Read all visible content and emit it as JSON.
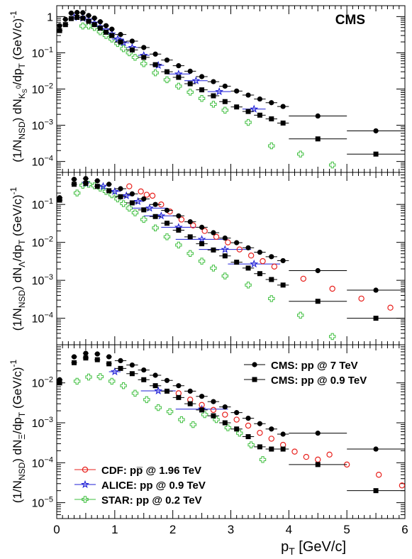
{
  "chart_data": {
    "type": "scatter",
    "xaxis": {
      "label": "p_T [GeV/c]",
      "range": [
        0,
        6
      ],
      "ticks": [
        "0",
        "1",
        "2",
        "3",
        "4",
        "5",
        "6"
      ]
    },
    "colors": {
      "CMS": "#000000",
      "CDF": "#e8201c",
      "ALICE": "#1f1fd6",
      "STAR": "#3fbf3f"
    },
    "experiment_label": "CMS",
    "legend_top": [
      {
        "label": "CMS: pp @ 7 TeV",
        "marker": "circle",
        "series": "cms7"
      },
      {
        "label": "CMS: pp @ 0.9 TeV",
        "marker": "square",
        "series": "cms09"
      }
    ],
    "legend_bottom": [
      {
        "label": "CDF: pp̅ @ 1.96 TeV",
        "marker": "open-circle",
        "series": "cdf"
      },
      {
        "label": "ALICE: pp @ 0.9 TeV",
        "marker": "star",
        "series": "alice"
      },
      {
        "label": "STAR: pp @ 0.2 TeV",
        "marker": "open-cross",
        "series": "star"
      }
    ],
    "panels": [
      {
        "id": "K0S",
        "ylabel": "(1/N_NSD) dN_{K0S}/dp_T (GeV/c)^-1",
        "yscale": "log",
        "ylim": [
          5e-05,
          2
        ],
        "ytick_values": [
          1,
          0.1,
          0.01,
          0.001,
          0.0001
        ],
        "ytick_labels": [
          "1",
          "10^-1",
          "10^-2",
          "10^-3",
          "10^-4"
        ],
        "series": {
          "cms7": {
            "x": [
              0.05,
              0.15,
              0.25,
              0.35,
              0.45,
              0.55,
              0.65,
              0.75,
              0.85,
              0.95,
              1.1,
              1.3,
              1.5,
              1.7,
              1.9,
              2.1,
              2.3,
              2.5,
              2.7,
              2.9,
              3.1,
              3.3,
              3.5,
              3.7,
              3.9,
              4.5,
              5.5
            ],
            "y": [
              0.56,
              0.84,
              1.25,
              1.3,
              1.28,
              1.07,
              0.91,
              0.72,
              0.56,
              0.45,
              0.32,
              0.21,
              0.14,
              0.092,
              0.063,
              0.044,
              0.031,
              0.022,
              0.016,
              0.012,
              0.0088,
              0.0068,
              0.0053,
              0.0042,
              0.0033,
              0.0018,
              0.0007
            ]
          },
          "cms09": {
            "x": [
              0.05,
              0.15,
              0.25,
              0.35,
              0.45,
              0.55,
              0.65,
              0.75,
              0.85,
              0.95,
              1.1,
              1.3,
              1.5,
              1.7,
              1.9,
              2.1,
              2.3,
              2.5,
              2.7,
              2.9,
              3.1,
              3.3,
              3.5,
              3.7,
              3.9,
              4.5,
              5.5
            ],
            "y": [
              0.41,
              0.6,
              0.88,
              0.95,
              0.9,
              0.74,
              0.6,
              0.48,
              0.37,
              0.3,
              0.2,
              0.12,
              0.075,
              0.047,
              0.03,
              0.021,
              0.014,
              0.0095,
              0.0065,
              0.0045,
              0.0032,
              0.0024,
              0.0019,
              0.0015,
              0.00115,
              0.00042,
              0.00016
            ]
          },
          "alice": {
            "x": [
              0.3,
              0.45,
              0.55,
              0.65,
              0.75,
              0.85,
              0.95,
              1.05,
              1.15,
              1.3,
              1.5,
              1.75,
              2.1,
              2.4,
              2.8,
              3.4
            ],
            "y": [
              0.95,
              0.9,
              0.8,
              0.66,
              0.52,
              0.43,
              0.33,
              0.24,
              0.19,
              0.14,
              0.085,
              0.045,
              0.026,
              0.017,
              0.0085,
              0.0028
            ]
          },
          "star": {
            "x": [
              0.45,
              0.55,
              0.65,
              0.75,
              0.85,
              0.95,
              1.05,
              1.15,
              1.25,
              1.35,
              1.5,
              1.7,
              1.9,
              2.1,
              2.3,
              2.5,
              2.7,
              2.9,
              3.3,
              3.7,
              4.2,
              4.75
            ],
            "y": [
              0.55,
              0.55,
              0.5,
              0.38,
              0.3,
              0.24,
              0.18,
              0.13,
              0.1,
              0.075,
              0.05,
              0.028,
              0.018,
              0.012,
              0.0082,
              0.0055,
              0.0038,
              0.0026,
              0.0012,
              0.00027,
              0.00016,
              8e-05
            ]
          }
        }
      },
      {
        "id": "Lambda",
        "ylabel": "(1/N_NSD) dN_Λ/dp_T (GeV/c)^-1",
        "yscale": "log",
        "ylim": [
          2e-05,
          0.7
        ],
        "ytick_values": [
          0.1,
          0.01,
          0.001,
          0.0001
        ],
        "ytick_labels": [
          "10^-1",
          "10^-2",
          "10^-3",
          "10^-4"
        ],
        "series": {
          "cms7": {
            "x": [
              0.05,
              0.3,
              0.5,
              0.7,
              0.9,
              1.1,
              1.3,
              1.5,
              1.7,
              1.9,
              2.1,
              2.3,
              2.5,
              2.7,
              2.9,
              3.1,
              3.3,
              3.5,
              3.7,
              3.9,
              4.5,
              5.5
            ],
            "y": [
              0.15,
              0.46,
              0.48,
              0.42,
              0.34,
              0.26,
              0.19,
              0.14,
              0.1,
              0.07,
              0.05,
              0.035,
              0.025,
              0.018,
              0.013,
              0.0098,
              0.0072,
              0.0055,
              0.0042,
              0.0033,
              0.0018,
              0.00055
            ]
          },
          "cms09": {
            "x": [
              0.05,
              0.3,
              0.5,
              0.7,
              0.9,
              1.1,
              1.3,
              1.5,
              1.7,
              1.9,
              2.1,
              2.3,
              2.5,
              2.7,
              2.9,
              3.1,
              3.3,
              3.5,
              3.7,
              3.9,
              4.5,
              5.5
            ],
            "y": [
              0.13,
              0.34,
              0.36,
              0.3,
              0.23,
              0.16,
              0.11,
              0.072,
              0.048,
              0.032,
              0.021,
              0.014,
              0.0092,
              0.0063,
              0.0044,
              0.003,
              0.0021,
              0.0015,
              0.00105,
              0.00075,
              0.00028,
              0.0001
            ]
          },
          "cdf": {
            "x": [
              1.25,
              1.45,
              1.55,
              1.65,
              1.8,
              1.95,
              2.15,
              2.35,
              2.55,
              2.75,
              2.95,
              3.15,
              3.35,
              3.55,
              3.75,
              4.25,
              4.75,
              5.25,
              5.75
            ],
            "y": [
              0.3,
              0.22,
              0.18,
              0.17,
              0.1,
              0.065,
              0.04,
              0.028,
              0.02,
              0.014,
              0.01,
              0.0065,
              0.0045,
              0.0032,
              0.0023,
              0.0011,
              0.0006,
              0.00033,
              0.00019
            ]
          },
          "alice": {
            "x": [
              0.5,
              0.8,
              1.0,
              1.2,
              1.4,
              1.6,
              1.8,
              2.1,
              2.5,
              2.9,
              3.4
            ],
            "y": [
              0.36,
              0.3,
              0.22,
              0.17,
              0.12,
              0.08,
              0.05,
              0.025,
              0.012,
              0.0065,
              0.0027
            ]
          },
          "star": {
            "x": [
              0.35,
              0.45,
              0.55,
              0.65,
              0.75,
              0.85,
              0.95,
              1.05,
              1.15,
              1.25,
              1.35,
              1.5,
              1.7,
              1.9,
              2.1,
              2.3,
              2.5,
              2.7,
              2.9,
              3.3,
              3.7,
              4.2,
              4.75
            ],
            "y": [
              0.2,
              0.32,
              0.34,
              0.31,
              0.27,
              0.22,
              0.18,
              0.14,
              0.105,
              0.08,
              0.06,
              0.04,
              0.024,
              0.014,
              0.0085,
              0.0051,
              0.0032,
              0.0021,
              0.0013,
              0.00075,
              0.00033,
              0.00012,
              3.3e-05
            ]
          }
        }
      },
      {
        "id": "Xi",
        "ylabel": "(1/N_NSD) dN_Ξ/dp_T (GeV/c)^-1",
        "yscale": "log",
        "ylim": [
          4e-06,
          0.09
        ],
        "ytick_values": [
          0.01,
          0.001,
          0.0001,
          1e-05
        ],
        "ytick_labels": [
          "10^-2",
          "10^-3",
          "10^-4",
          "10^-5"
        ],
        "series": {
          "cms7": {
            "x": [
              0.05,
              0.3,
              0.5,
              0.7,
              0.9,
              1.1,
              1.3,
              1.5,
              1.7,
              1.9,
              2.1,
              2.3,
              2.5,
              2.7,
              2.9,
              3.1,
              3.3,
              3.5,
              3.7,
              3.9,
              4.5,
              5.5
            ],
            "y": [
              0.012,
              0.045,
              0.055,
              0.053,
              0.045,
              0.036,
              0.028,
              0.021,
              0.0155,
              0.0115,
              0.0085,
              0.0062,
              0.0046,
              0.0034,
              0.0025,
              0.0018,
              0.0013,
              0.00095,
              0.0007,
              0.00052,
              0.00055,
              0.00022
            ]
          },
          "cms09": {
            "x": [
              0.05,
              0.3,
              0.5,
              0.7,
              0.9,
              1.1,
              1.3,
              1.5,
              1.7,
              1.9,
              2.1,
              2.3,
              2.5,
              2.7,
              2.9,
              3.1,
              3.3,
              3.5,
              3.7,
              3.9,
              4.5,
              5.5
            ],
            "y": [
              0.01,
              0.032,
              0.042,
              0.038,
              0.03,
              0.023,
              0.017,
              0.012,
              0.0085,
              0.0062,
              0.0043,
              0.003,
              0.0021,
              0.0015,
              0.001,
              0.0007,
              0.00045,
              0.00025,
              0.00022,
              0.00022,
              9e-05,
              2e-05
            ]
          },
          "cdf": {
            "x": [
              2.1,
              2.3,
              2.5,
              2.7,
              2.9,
              3.1,
              3.3,
              3.5,
              3.7,
              3.9,
              4.1,
              4.3,
              4.5,
              4.7,
              5.0,
              5.55,
              5.95
            ],
            "y": [
              0.0055,
              0.0038,
              0.0028,
              0.0021,
              0.0016,
              0.0012,
              0.00085,
              0.00056,
              0.0004,
              0.00028,
              0.00019,
              0.00014,
              0.00012,
              0.00016,
              9e-05,
              5e-05,
              2.7e-05
            ]
          },
          "alice": {
            "x": [
              1.0,
              1.75,
              2.5
            ],
            "y": [
              0.019,
              0.0063,
              0.0022
            ]
          },
          "star": {
            "x": [
              0.35,
              0.55,
              0.75,
              0.95,
              1.15,
              1.35,
              1.55,
              1.75,
              1.95,
              2.15,
              2.35,
              2.55,
              2.75,
              2.95,
              3.15,
              3.35,
              3.55
            ],
            "y": [
              0.011,
              0.014,
              0.0143,
              0.011,
              0.0085,
              0.0055,
              0.0038,
              0.0024,
              0.0019,
              0.0012,
              0.0009,
              0.0016,
              0.0012,
              0.00075,
              0.00055,
              0.00028,
              0.00012
            ]
          }
        }
      }
    ]
  }
}
